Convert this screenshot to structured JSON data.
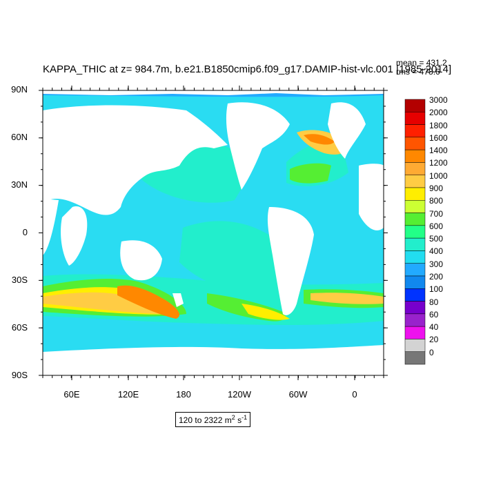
{
  "title": "KAPPA_THIC at z= 984.7m, b.e21.B1850cmip6.f09_g17.DAMIP-hist-vlc.001 [1985-2014]",
  "stats": {
    "mean": "mean = 431.2",
    "rms": "rms = 478.6"
  },
  "units": {
    "range": "120 to 2322 m",
    "sq": "2",
    "s": " s",
    "neg": "-1"
  },
  "axes": {
    "y_ticks": [
      "90N",
      "60N",
      "30N",
      "0",
      "30S",
      "60S",
      "90S"
    ],
    "x_ticks": [
      "60E",
      "120E",
      "180",
      "120W",
      "60W",
      "0"
    ]
  },
  "colorbar": {
    "labels": [
      "3000",
      "2000",
      "1800",
      "1600",
      "1400",
      "1200",
      "1000",
      "900",
      "800",
      "700",
      "600",
      "500",
      "400",
      "300",
      "200",
      "100",
      "80",
      "60",
      "40",
      "20",
      "0"
    ],
    "colors": [
      "#b30000",
      "#e60000",
      "#ff2000",
      "#ff5500",
      "#ff8800",
      "#ffaa33",
      "#ffcc44",
      "#ffee00",
      "#ccff33",
      "#55ee33",
      "#22ff88",
      "#22eecc",
      "#22ddf0",
      "#22aaff",
      "#1188ee",
      "#0033ff",
      "#7700cc",
      "#9922cc",
      "#ee11ee",
      "#d3d3d3",
      "#777777"
    ]
  },
  "map": {
    "ocean_base_color": "#2adcf2",
    "land_color": "#ffffff",
    "mid_color": "#22eecc",
    "high_colors": [
      "#55ee33",
      "#ffee00",
      "#ffcc44",
      "#ff8800"
    ]
  }
}
